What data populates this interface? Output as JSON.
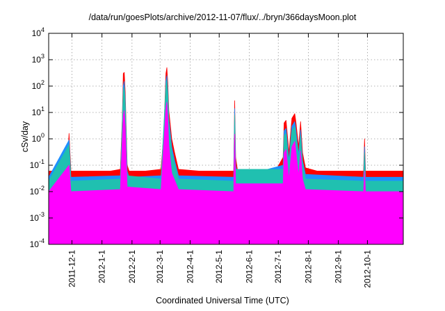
{
  "chart_data": {
    "type": "line",
    "title": "/data/run/goesPlots/archive/2012-11-07/flux/../bryn/366daysMoon.plot",
    "xlabel": "Coordinated Universal Time (UTC)",
    "ylabel": "cSv/day",
    "xlim": [
      "2011-11-07",
      "2012-11-07"
    ],
    "ylim": [
      0.0001,
      10000
    ],
    "yscale": "log",
    "grid": true,
    "x_ticks": [
      "2011-12-1",
      "2012-1-1",
      "2012-2-1",
      "2012-3-1",
      "2012-4-1",
      "2012-5-1",
      "2012-6-1",
      "2012-7-1",
      "2012-8-1",
      "2012-9-1",
      "2012-10-1"
    ],
    "y_ticks": [
      {
        "value": 0.0001,
        "base": "10",
        "exp": "-4"
      },
      {
        "value": 0.001,
        "base": "10",
        "exp": "-3"
      },
      {
        "value": 0.01,
        "base": "10",
        "exp": "-2"
      },
      {
        "value": 0.1,
        "base": "10",
        "exp": "-1"
      },
      {
        "value": 1,
        "base": "10",
        "exp": "0"
      },
      {
        "value": 10,
        "base": "10",
        "exp": "1"
      },
      {
        "value": 100,
        "base": "10",
        "exp": "2"
      },
      {
        "value": 1000,
        "base": "10",
        "exp": "3"
      },
      {
        "value": 10000,
        "base": "10",
        "exp": "4"
      }
    ],
    "series": [
      {
        "color": "#ff0000",
        "x": [
          "2011-11-07",
          "2011-11-20",
          "2011-11-26",
          "2011-11-28",
          "2011-11-30",
          "2011-12-15",
          "2012-01-10",
          "2012-01-20",
          "2012-01-22",
          "2012-01-23",
          "2012-01-24",
          "2012-01-25",
          "2012-01-27",
          "2012-01-29",
          "2012-02-15",
          "2012-03-02",
          "2012-03-05",
          "2012-03-07",
          "2012-03-08",
          "2012-03-09",
          "2012-03-10",
          "2012-03-13",
          "2012-03-16",
          "2012-03-20",
          "2012-04-10",
          "2012-05-05",
          "2012-05-16",
          "2012-05-17",
          "2012-05-18",
          "2012-05-20",
          "2012-06-10",
          "2012-06-28",
          "2012-07-06",
          "2012-07-07",
          "2012-07-09",
          "2012-07-12",
          "2012-07-15",
          "2012-07-18",
          "2012-07-19",
          "2012-07-22",
          "2012-07-24",
          "2012-07-26",
          "2012-07-29",
          "2012-08-10",
          "2012-08-25",
          "2012-09-20",
          "2012-09-27",
          "2012-09-28",
          "2012-09-29",
          "2012-10-15",
          "2012-11-07"
        ],
        "y": [
          0.06,
          0.06,
          0.06,
          1.6,
          0.06,
          0.06,
          0.06,
          0.07,
          6,
          300,
          330,
          60,
          0.1,
          0.06,
          0.06,
          0.07,
          2,
          300,
          500,
          120,
          12,
          1,
          0.3,
          0.07,
          0.06,
          0.06,
          0.06,
          28,
          0.2,
          0.06,
          0.06,
          0.06,
          0.2,
          4,
          5,
          0.3,
          6,
          9,
          5,
          0.5,
          4.5,
          0.3,
          0.08,
          0.06,
          0.06,
          0.06,
          0.06,
          1,
          0.06,
          0.06,
          0.06
        ]
      },
      {
        "color": "#1e90ff",
        "x": [
          "2011-11-07",
          "2011-11-28",
          "2011-11-30",
          "2012-01-20",
          "2012-01-22",
          "2012-01-23",
          "2012-01-24",
          "2012-01-25",
          "2012-01-27",
          "2012-01-29",
          "2012-03-02",
          "2012-03-05",
          "2012-03-07",
          "2012-03-08",
          "2012-03-09",
          "2012-03-10",
          "2012-03-13",
          "2012-03-16",
          "2012-03-20",
          "2012-05-16",
          "2012-05-17",
          "2012-05-18",
          "2012-05-20",
          "2012-07-06",
          "2012-07-07",
          "2012-07-09",
          "2012-07-12",
          "2012-07-15",
          "2012-07-18",
          "2012-07-19",
          "2012-07-22",
          "2012-07-24",
          "2012-07-26",
          "2012-07-29",
          "2012-09-27",
          "2012-09-28",
          "2012-09-29",
          "2012-11-07"
        ],
        "y": [
          0.035,
          0.9,
          0.035,
          0.04,
          3,
          100,
          150,
          30,
          0.06,
          0.035,
          0.04,
          1,
          150,
          250,
          60,
          6,
          0.5,
          0.15,
          0.04,
          0.035,
          14,
          0.1,
          0.035,
          0.1,
          2,
          2.5,
          0.15,
          3,
          4.5,
          2.5,
          0.25,
          2.2,
          0.15,
          0.045,
          0.035,
          0.5,
          0.035,
          0.035
        ]
      },
      {
        "color": "#20c0b0",
        "x": [
          "2011-11-07",
          "2011-11-28",
          "2011-11-30",
          "2012-01-20",
          "2012-01-23",
          "2012-01-24",
          "2012-01-25",
          "2012-01-27",
          "2012-03-02",
          "2012-03-07",
          "2012-03-08",
          "2012-03-09",
          "2012-03-10",
          "2012-03-13",
          "2012-03-20",
          "2012-05-16",
          "2012-05-17",
          "2012-05-18",
          "2012-07-06",
          "2012-07-07",
          "2012-07-09",
          "2012-07-12",
          "2012-07-15",
          "2012-07-18",
          "2012-07-19",
          "2012-07-22",
          "2012-07-24",
          "2012-07-26",
          "2012-07-29",
          "2012-09-27",
          "2012-09-28",
          "2012-09-29",
          "2012-11-07"
        ],
        "y": [
          0.025,
          0.6,
          0.025,
          0.03,
          60,
          90,
          20,
          0.04,
          0.03,
          100,
          170,
          40,
          4,
          0.3,
          0.03,
          0.025,
          8,
          0.07,
          0.07,
          1.3,
          1.6,
          0.1,
          2,
          3,
          1.6,
          0.15,
          1.4,
          0.1,
          0.03,
          0.025,
          0.3,
          0.025,
          0.025
        ]
      },
      {
        "color": "#ff00ff",
        "x": [
          "2011-11-07",
          "2011-11-28",
          "2011-11-30",
          "2012-01-20",
          "2012-01-23",
          "2012-01-24",
          "2012-01-25",
          "2012-01-27",
          "2012-03-02",
          "2012-03-07",
          "2012-03-08",
          "2012-03-09",
          "2012-03-10",
          "2012-03-13",
          "2012-03-20",
          "2012-05-16",
          "2012-05-17",
          "2012-05-18",
          "2012-07-06",
          "2012-07-07",
          "2012-07-09",
          "2012-07-12",
          "2012-07-15",
          "2012-07-18",
          "2012-07-19",
          "2012-07-22",
          "2012-07-24",
          "2012-07-26",
          "2012-07-29",
          "2012-09-27",
          "2012-09-28",
          "2012-09-29",
          "2012-11-07"
        ],
        "y": [
          0.01,
          0.1,
          0.01,
          0.012,
          8,
          12,
          3,
          0.015,
          0.012,
          15,
          25,
          6,
          0.6,
          0.05,
          0.012,
          0.01,
          1.5,
          0.02,
          0.02,
          0.3,
          0.4,
          0.03,
          0.5,
          0.8,
          0.4,
          0.04,
          0.35,
          0.03,
          0.012,
          0.01,
          0.06,
          0.01,
          0.01
        ]
      }
    ]
  }
}
